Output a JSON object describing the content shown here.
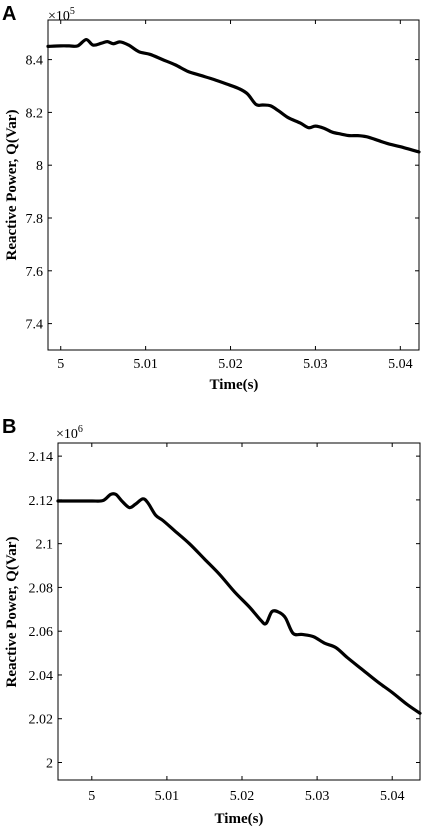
{
  "chart_data": [
    {
      "type": "line",
      "panel": "A",
      "multiplier_prefix": "×10",
      "multiplier_exponent": "5",
      "xlabel": "Time(s)",
      "ylabel": "Reactive Power, Q(Var)",
      "xlim": [
        4.9985,
        5.0422
      ],
      "ylim": [
        7.3,
        8.55
      ],
      "xticks": [
        5,
        5.01,
        5.02,
        5.03,
        5.04
      ],
      "xtick_labels": [
        "5",
        "5.01",
        "5.02",
        "5.03",
        "5.04"
      ],
      "yticks": [
        7.4,
        7.6,
        7.8,
        8,
        8.2,
        8.4
      ],
      "ytick_labels": [
        "7.4",
        "7.6",
        "7.8",
        "8",
        "8.2",
        "8.4"
      ],
      "series": [
        {
          "x": [
            4.9985,
            5.0,
            5.001,
            5.002,
            5.003,
            5.0038,
            5.0048,
            5.0055,
            5.0062,
            5.007,
            5.008,
            5.0092,
            5.0105,
            5.012,
            5.0135,
            5.015,
            5.0165,
            5.018,
            5.0195,
            5.021,
            5.022,
            5.023,
            5.0238,
            5.0247,
            5.0257,
            5.0268,
            5.0282,
            5.0292,
            5.03,
            5.031,
            5.032,
            5.033,
            5.034,
            5.035,
            5.036,
            5.037,
            5.0385,
            5.04,
            5.0422
          ],
          "y": [
            8.45,
            8.452,
            8.452,
            8.452,
            8.476,
            8.455,
            8.462,
            8.468,
            8.46,
            8.467,
            8.455,
            8.43,
            8.42,
            8.4,
            8.38,
            8.355,
            8.34,
            8.325,
            8.308,
            8.29,
            8.27,
            8.23,
            8.228,
            8.225,
            8.205,
            8.18,
            8.16,
            8.142,
            8.148,
            8.14,
            8.125,
            8.118,
            8.112,
            8.112,
            8.108,
            8.098,
            8.082,
            8.07,
            8.05
          ]
        }
      ]
    },
    {
      "type": "line",
      "panel": "B",
      "multiplier_prefix": "×10",
      "multiplier_exponent": "6",
      "xlabel": "Time(s)",
      "ylabel": "Reactive Power, Q(Var)",
      "xlim": [
        4.9955,
        5.0437
      ],
      "ylim": [
        1.992,
        2.146
      ],
      "xticks": [
        5,
        5.01,
        5.02,
        5.03,
        5.04
      ],
      "xtick_labels": [
        "5",
        "5.01",
        "5.02",
        "5.03",
        "5.04"
      ],
      "yticks": [
        2,
        2.02,
        2.04,
        2.06,
        2.08,
        2.1,
        2.12,
        2.14
      ],
      "ytick_labels": [
        "2",
        "2.02",
        "2.04",
        "2.06",
        "2.08",
        "2.1",
        "2.12",
        "2.14"
      ],
      "series": [
        {
          "x": [
            4.9955,
            4.998,
            5.0,
            5.0015,
            5.0025,
            5.0032,
            5.004,
            5.005,
            5.0058,
            5.0068,
            5.0075,
            5.0085,
            5.0095,
            5.011,
            5.013,
            5.015,
            5.017,
            5.019,
            5.021,
            5.0225,
            5.0232,
            5.024,
            5.025,
            5.0258,
            5.0268,
            5.028,
            5.0295,
            5.031,
            5.0325,
            5.034,
            5.036,
            5.038,
            5.04,
            5.042,
            5.0437
          ],
          "y": [
            2.1195,
            2.1195,
            2.1195,
            2.1197,
            2.1225,
            2.1225,
            2.1195,
            2.1165,
            2.118,
            2.1205,
            2.1185,
            2.113,
            2.1105,
            2.106,
            2.1,
            2.093,
            2.086,
            2.078,
            2.071,
            2.065,
            2.0635,
            2.069,
            2.0685,
            2.066,
            2.059,
            2.0585,
            2.0575,
            2.0545,
            2.0525,
            2.048,
            2.0425,
            2.037,
            2.032,
            2.0265,
            2.0225
          ]
        }
      ]
    }
  ]
}
